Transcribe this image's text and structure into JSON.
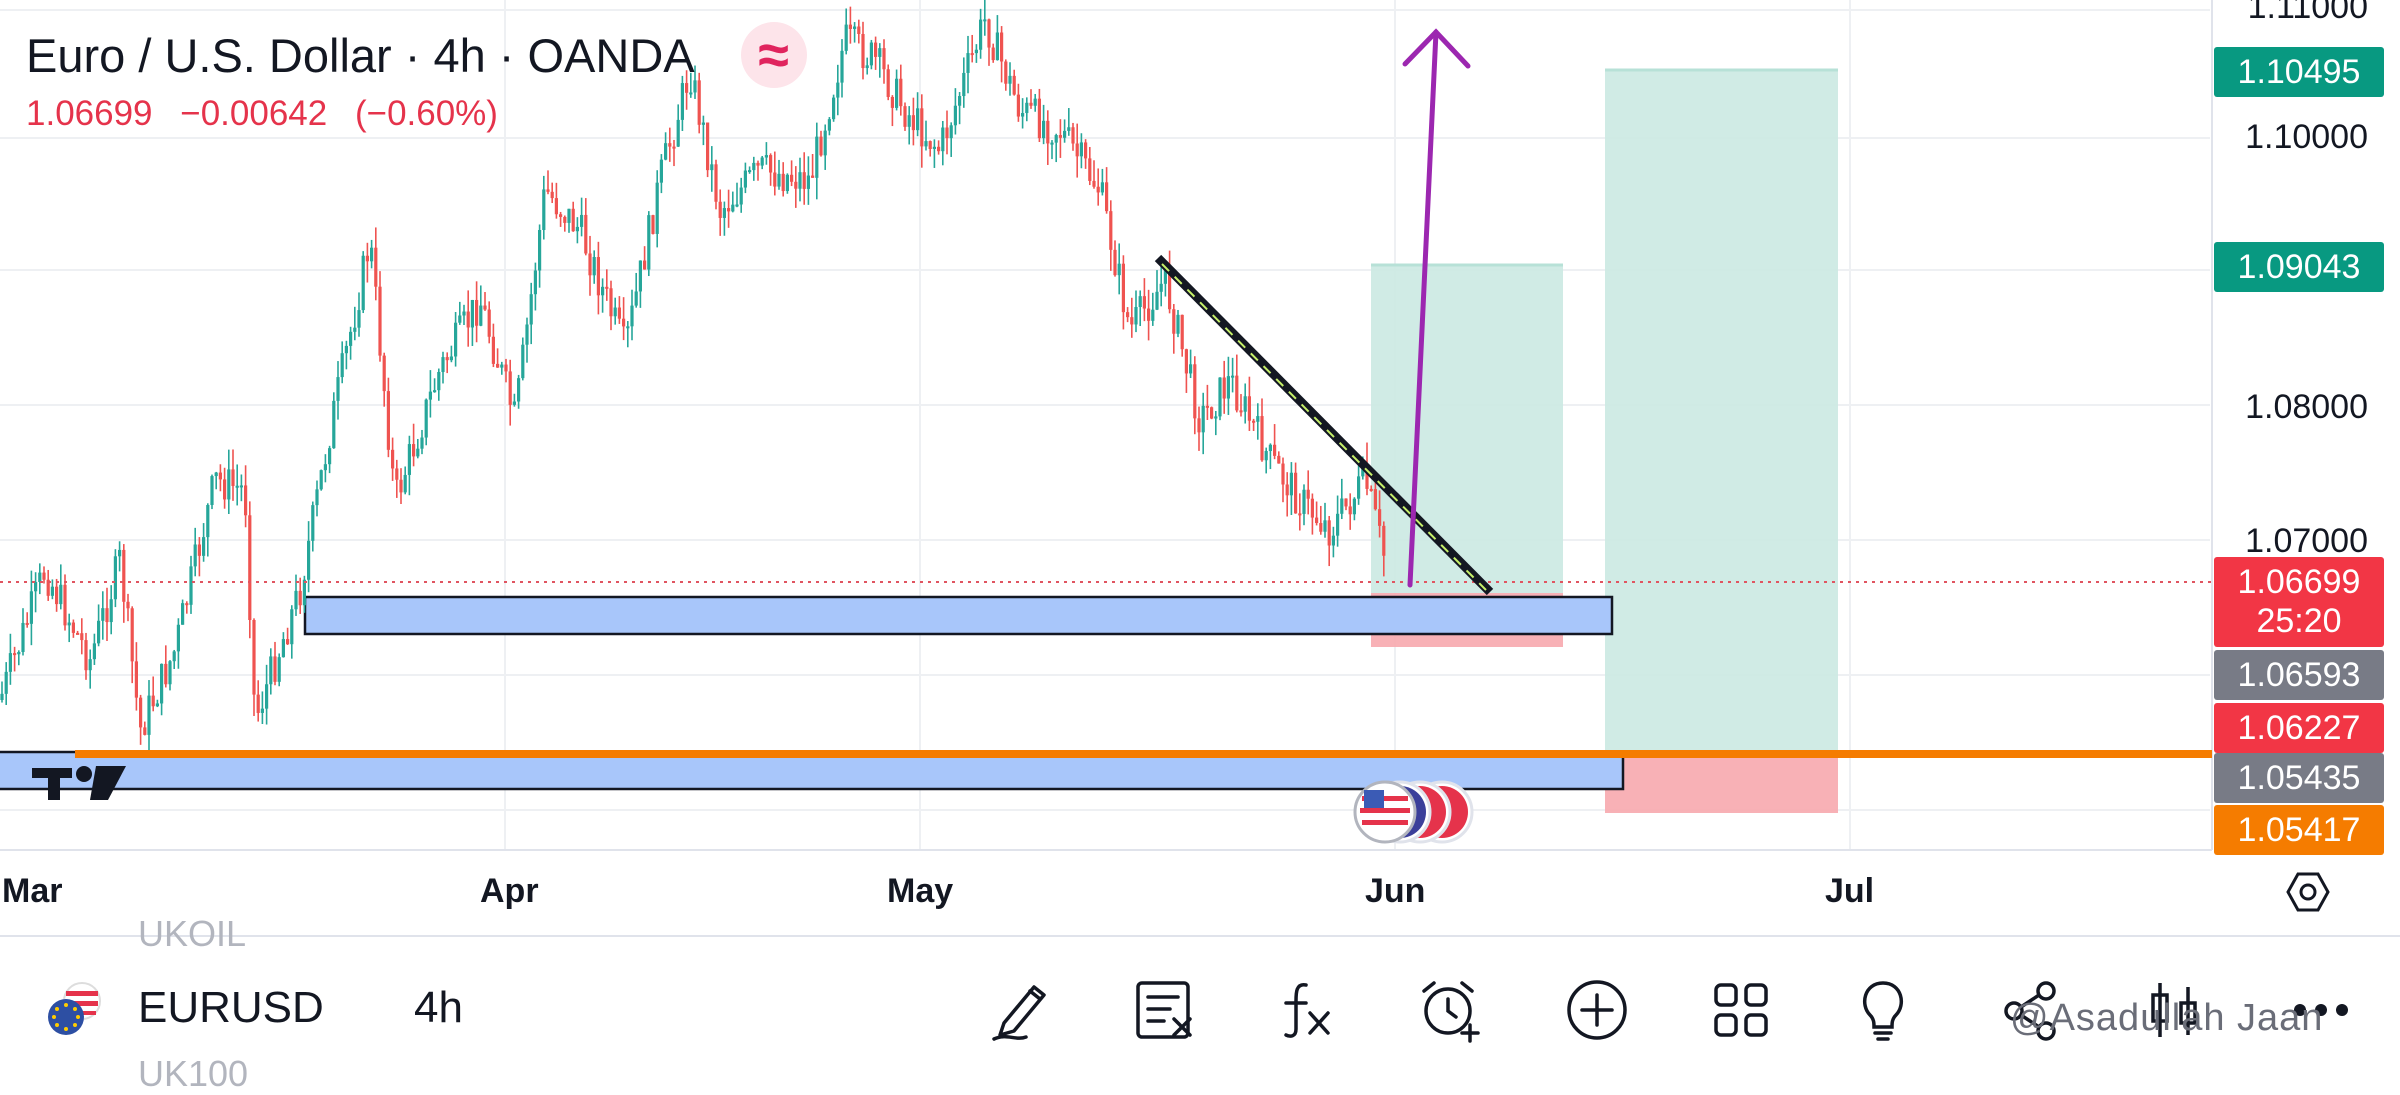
{
  "header": {
    "title": "Euro / U.S. Dollar · 4h · OANDA",
    "indicator_symbol": "≈",
    "last_price": "1.06699",
    "change": "−0.00642",
    "change_pct": "(−0.60%)"
  },
  "price_axis": {
    "ticks": [
      "1.11000",
      "1.10000",
      "1.08000",
      "1.07000"
    ],
    "labels": [
      {
        "text": "1.10495",
        "color": "#089981"
      },
      {
        "text": "1.09043",
        "color": "#089981"
      },
      {
        "text": "1.06699",
        "color": "#f23645"
      },
      {
        "text": "25:20",
        "color": "#f23645"
      },
      {
        "text": "1.06593",
        "color": "#787b86"
      },
      {
        "text": "1.06227",
        "color": "#f23645"
      },
      {
        "text": "1.05435",
        "color": "#787b86"
      },
      {
        "text": "1.05417",
        "color": "#f57c00"
      }
    ]
  },
  "time_axis": {
    "months": [
      "Mar",
      "Apr",
      "May",
      "Jun",
      "Jul"
    ]
  },
  "toolbar": {
    "symbol": "EURUSD",
    "interval": "4h",
    "ghost_above": "UKOIL",
    "ghost_below": "UK100",
    "icons": [
      "drawing-pen-icon",
      "object-tree-icon",
      "indicators-fx-icon",
      "alert-clock-icon",
      "add-circle-icon",
      "layouts-grid-icon",
      "ideas-bulb-icon",
      "share-icon",
      "candles-icon",
      "more-icon"
    ]
  },
  "watermark": "@Asadullah Jaan",
  "colors": {
    "up": "#26a69a",
    "down": "#ef5350",
    "zone_blue": "#a8c6fa",
    "target_green": "#cbe9e2",
    "stop_red": "#f7a8ae",
    "orange_line": "#f57c00",
    "arrow_purple": "#9c27b0"
  }
}
